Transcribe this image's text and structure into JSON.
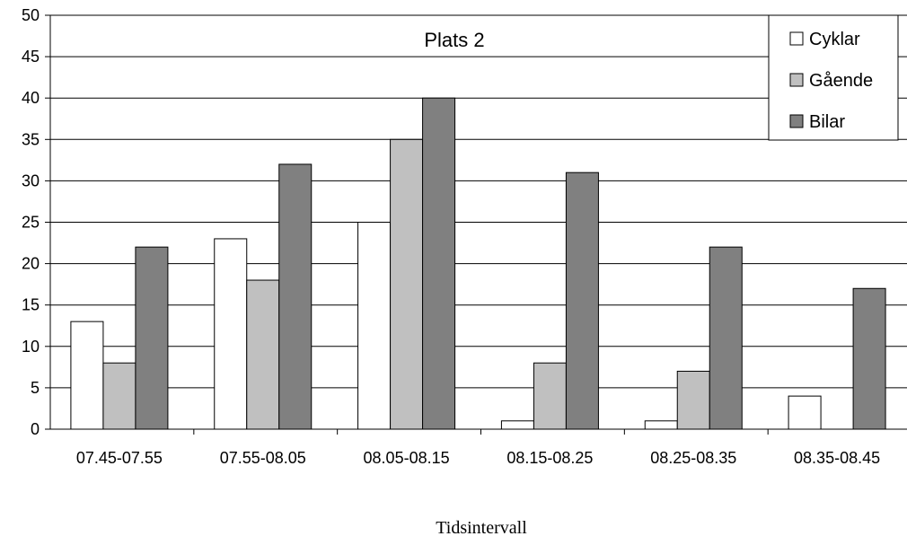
{
  "chart_data": {
    "type": "bar",
    "title": "Plats 2",
    "xlabel": "Tidsintervall",
    "ylabel": "",
    "ylim": [
      0,
      50
    ],
    "yticks": [
      0,
      5,
      10,
      15,
      20,
      25,
      30,
      35,
      40,
      45,
      50
    ],
    "grid": "horizontal",
    "legend_position": "top-right",
    "categories": [
      "07.45-07.55",
      "07.55-08.05",
      "08.05-08.15",
      "08.15-08.25",
      "08.25-08.35",
      "08.35-08.45"
    ],
    "series": [
      {
        "name": "Cyklar",
        "color": "#ffffff",
        "values": [
          13,
          23,
          25,
          1,
          1,
          4
        ]
      },
      {
        "name": "Gående",
        "color": "#c0c0c0",
        "values": [
          8,
          18,
          35,
          8,
          7,
          0
        ]
      },
      {
        "name": "Bilar",
        "color": "#808080",
        "values": [
          22,
          32,
          40,
          31,
          22,
          17
        ]
      }
    ]
  }
}
